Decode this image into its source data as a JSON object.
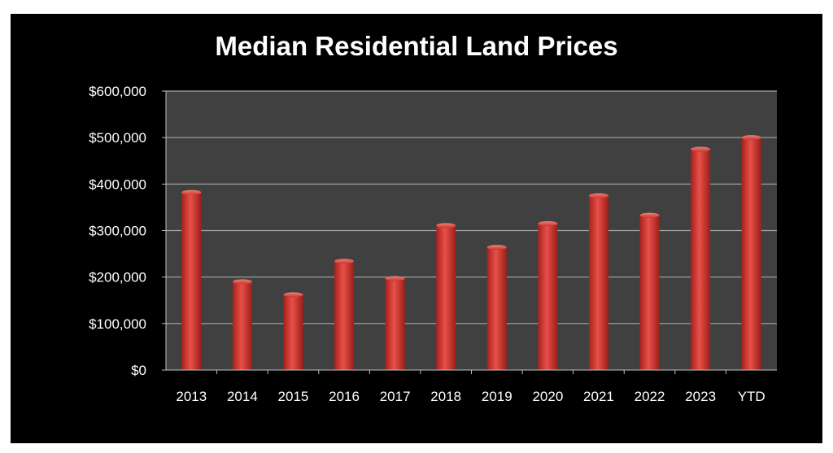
{
  "colors": {
    "background": "#000000",
    "plot_area": "#404040",
    "gridline": "#a6a6a6",
    "bar": "#d9403a",
    "text": "#ffffff"
  },
  "chart_data": {
    "type": "bar",
    "title": "Median Residential Land Prices",
    "xlabel": "",
    "ylabel": "",
    "categories": [
      "2013",
      "2014",
      "2015",
      "2016",
      "2017",
      "2018",
      "2019",
      "2020",
      "2021",
      "2022",
      "2023",
      "YTD"
    ],
    "values": [
      382000,
      190000,
      162000,
      234000,
      197000,
      311000,
      264000,
      315000,
      375000,
      333000,
      475000,
      500000
    ],
    "ylim": [
      0,
      600000
    ],
    "yticks": [
      "$0",
      "$100,000",
      "$200,000",
      "$300,000",
      "$400,000",
      "$500,000",
      "$600,000"
    ],
    "grid": true,
    "legend": "none"
  }
}
